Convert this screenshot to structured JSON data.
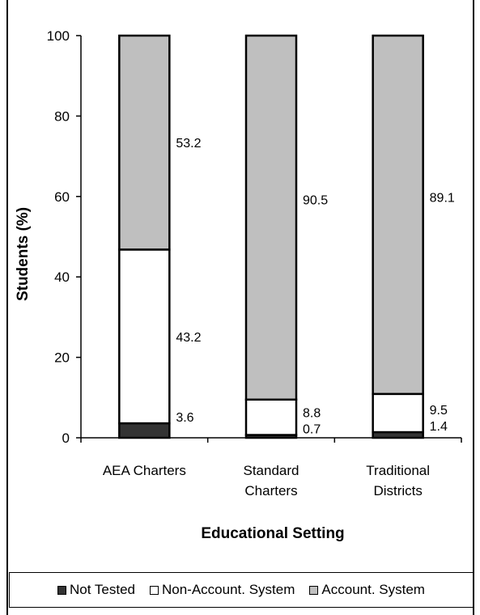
{
  "chart_data": {
    "type": "bar",
    "stacked": true,
    "title": "",
    "xlabel": "Educational Setting",
    "ylabel": "Students (%)",
    "ylim": [
      0,
      100
    ],
    "yticks": [
      "0",
      "20",
      "40",
      "60",
      "80",
      "100"
    ],
    "categories": [
      [
        "AEA Charters"
      ],
      [
        "Standard",
        "Charters"
      ],
      [
        "Traditional",
        "Districts"
      ]
    ],
    "series": [
      {
        "name": "Not Tested",
        "color": "#333333",
        "values": [
          3.6,
          0.7,
          1.4
        ],
        "labels": [
          "3.6",
          "0.7",
          "1.4"
        ]
      },
      {
        "name": "Non-Account. System",
        "color": "#ffffff",
        "values": [
          43.2,
          8.8,
          9.5
        ],
        "labels": [
          "43.2",
          "8.8",
          "9.5"
        ]
      },
      {
        "name": "Account. System",
        "color": "#bfbfbf",
        "values": [
          53.2,
          90.5,
          89.1
        ],
        "labels": [
          "53.2",
          "90.5",
          "89.1"
        ]
      }
    ],
    "legend_position": "bottom",
    "grid": false
  }
}
